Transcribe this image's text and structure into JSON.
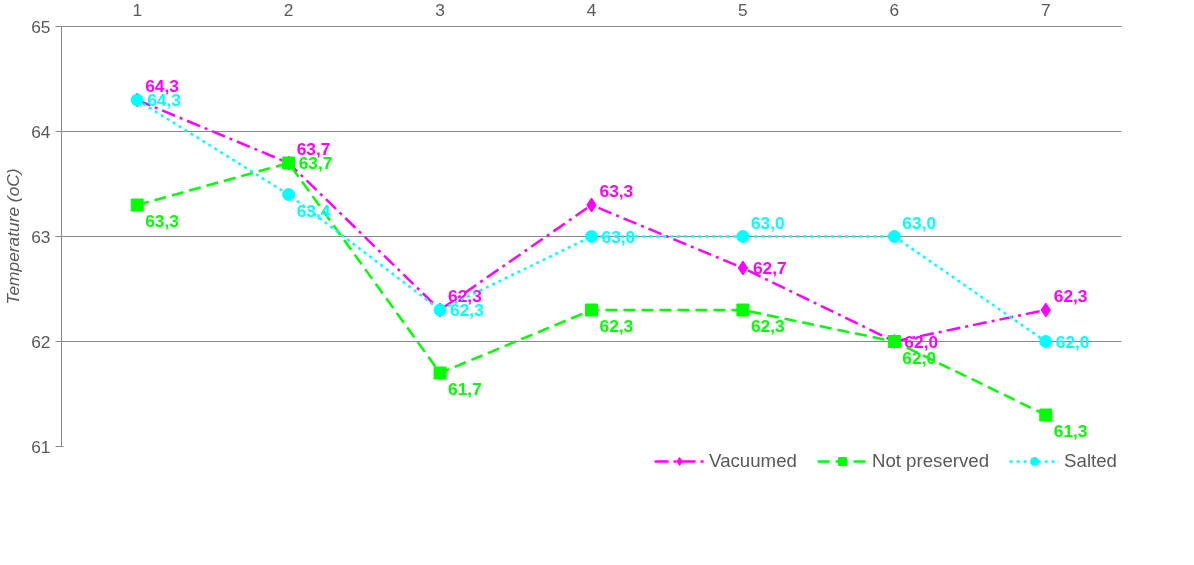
{
  "chart_data": {
    "type": "line",
    "ylabel": "Temperature (oC)",
    "categories": [
      "1",
      "2",
      "3",
      "4",
      "5",
      "6",
      "7"
    ],
    "ylim": [
      61,
      65
    ],
    "yticks": [
      61,
      62,
      63,
      64,
      65
    ],
    "grid": "y",
    "legend": "bottom",
    "series": [
      {
        "name": "Vacuumed",
        "color": "#ff00ff",
        "marker": "diamond",
        "line_style": "dashdot",
        "values": [
          64.3,
          63.7,
          62.3,
          63.3,
          62.7,
          62.0,
          62.3
        ],
        "value_labels": [
          "64,3",
          "63,7",
          "62,3",
          "63,3",
          "62,7",
          "62,0",
          "62,3"
        ]
      },
      {
        "name": "Not preserved",
        "color": "#00ff00",
        "marker": "square",
        "line_style": "dashed",
        "values": [
          63.3,
          63.7,
          61.7,
          62.3,
          62.3,
          62.0,
          61.3
        ],
        "value_labels": [
          "63,3",
          "63,7",
          "61,7",
          "62,3",
          "62,3",
          "62,0",
          "61,3"
        ]
      },
      {
        "name": "Salted",
        "color": "#00ffff",
        "marker": "circle",
        "line_style": "dotted",
        "values": [
          64.3,
          63.4,
          62.3,
          63.0,
          63.0,
          63.0,
          62.0
        ],
        "value_labels": [
          "64,3",
          "63,4",
          "62,3",
          "63,0",
          "63,0",
          "63,0",
          "62,0"
        ]
      }
    ]
  }
}
